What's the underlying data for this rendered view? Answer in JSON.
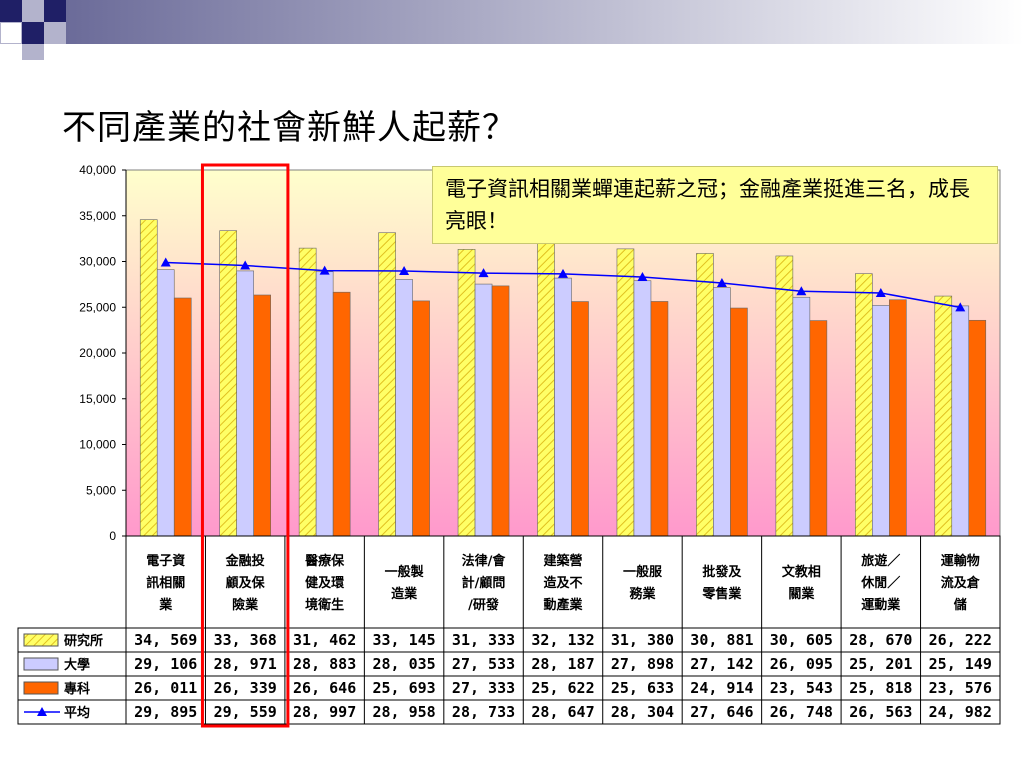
{
  "slide": {
    "title": "不同產業的社會新鮮人起薪？",
    "callout": "電子資訊相關業蟬連起薪之冠；金融產業挺進三名，成長亮眼！"
  },
  "colors": {
    "research": "#ffff66",
    "university": "#ccccff",
    "college": "#ff6600",
    "average": "#0000ff",
    "highlight": "#ff0000",
    "plot_top": "#ffffcc",
    "plot_bottom": "#ff99cc"
  },
  "chart_data": {
    "type": "bar",
    "ylim": [
      0,
      40000
    ],
    "yticks": [
      "0",
      "5,000",
      "10,000",
      "15,000",
      "20,000",
      "25,000",
      "30,000",
      "35,000",
      "40,000"
    ],
    "categories": [
      [
        "電子資",
        "訊相關",
        "業"
      ],
      [
        "金融投",
        "顧及保",
        "險業"
      ],
      [
        "醫療保",
        "健及環",
        "境衛生"
      ],
      [
        "一般製",
        "造業"
      ],
      [
        "法律/會",
        "計/顧問",
        "/研發"
      ],
      [
        "建築營",
        "造及不",
        "動產業"
      ],
      [
        "一般服",
        "務業"
      ],
      [
        "批發及",
        "零售業"
      ],
      [
        "文教相",
        "關業"
      ],
      [
        "旅遊／",
        "休閒／",
        "運動業"
      ],
      [
        "運輸物",
        "流及倉",
        "儲"
      ]
    ],
    "series": [
      {
        "name": "研究所",
        "values": [
          34569,
          33368,
          31462,
          33145,
          31333,
          32132,
          31380,
          30881,
          30605,
          28670,
          26222
        ],
        "labels": [
          "34, 569",
          "33, 368",
          "31, 462",
          "33, 145",
          "31, 333",
          "32, 132",
          "31, 380",
          "30, 881",
          "30, 605",
          "28, 670",
          "26, 222"
        ]
      },
      {
        "name": "大學",
        "values": [
          29106,
          28971,
          28883,
          28035,
          27533,
          28187,
          27898,
          27142,
          26095,
          25201,
          25149
        ],
        "labels": [
          "29, 106",
          "28, 971",
          "28, 883",
          "28, 035",
          "27, 533",
          "28, 187",
          "27, 898",
          "27, 142",
          "26, 095",
          "25, 201",
          "25, 149"
        ]
      },
      {
        "name": "專科",
        "values": [
          26011,
          26339,
          26646,
          25693,
          27333,
          25622,
          25633,
          24914,
          23543,
          25818,
          23576
        ],
        "labels": [
          "26, 011",
          "26, 339",
          "26, 646",
          "25, 693",
          "27, 333",
          "25, 622",
          "25, 633",
          "24, 914",
          "23, 543",
          "25, 818",
          "23, 576"
        ]
      },
      {
        "name": "平均",
        "values": [
          29895,
          29559,
          28997,
          28958,
          28733,
          28647,
          28304,
          27646,
          26748,
          26563,
          24982
        ],
        "labels": [
          "29, 895",
          "29, 559",
          "28, 997",
          "28, 958",
          "28, 733",
          "28, 647",
          "28, 304",
          "27, 646",
          "26, 748",
          "26, 563",
          "24, 982"
        ]
      }
    ],
    "highlight_category_index": 1
  }
}
